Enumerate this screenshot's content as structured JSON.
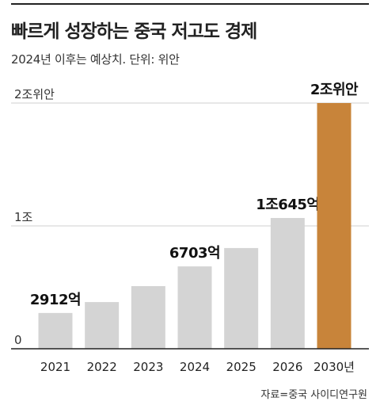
{
  "title": "빠르게 성장하는 중국 저고도 경제",
  "subtitle": "2024년 이후는 예상치. 단위: 위안",
  "source": "자료=중국 사이디연구원",
  "chart_data": {
    "type": "bar",
    "categories": [
      "2021",
      "2022",
      "2023",
      "2024",
      "2025",
      "2026",
      "2030년"
    ],
    "values": [
      2912,
      3800,
      5100,
      6703,
      8200,
      10645,
      20000
    ],
    "value_unit": "억 위안",
    "data_labels": [
      "2912억",
      "",
      "",
      "6703억",
      "",
      "1조645억",
      "2조위안"
    ],
    "highlight_index": 6,
    "ylim": [
      0,
      20000
    ],
    "yticks": [
      {
        "value": 0,
        "label": "0"
      },
      {
        "value": 10000,
        "label": "1조"
      },
      {
        "value": 20000,
        "label": "2조위안"
      }
    ],
    "grid": true,
    "colors": {
      "bar": "#d4d4d4",
      "highlight": "#c8843a",
      "grid": "#cfcfcf",
      "axis": "#222222"
    }
  }
}
